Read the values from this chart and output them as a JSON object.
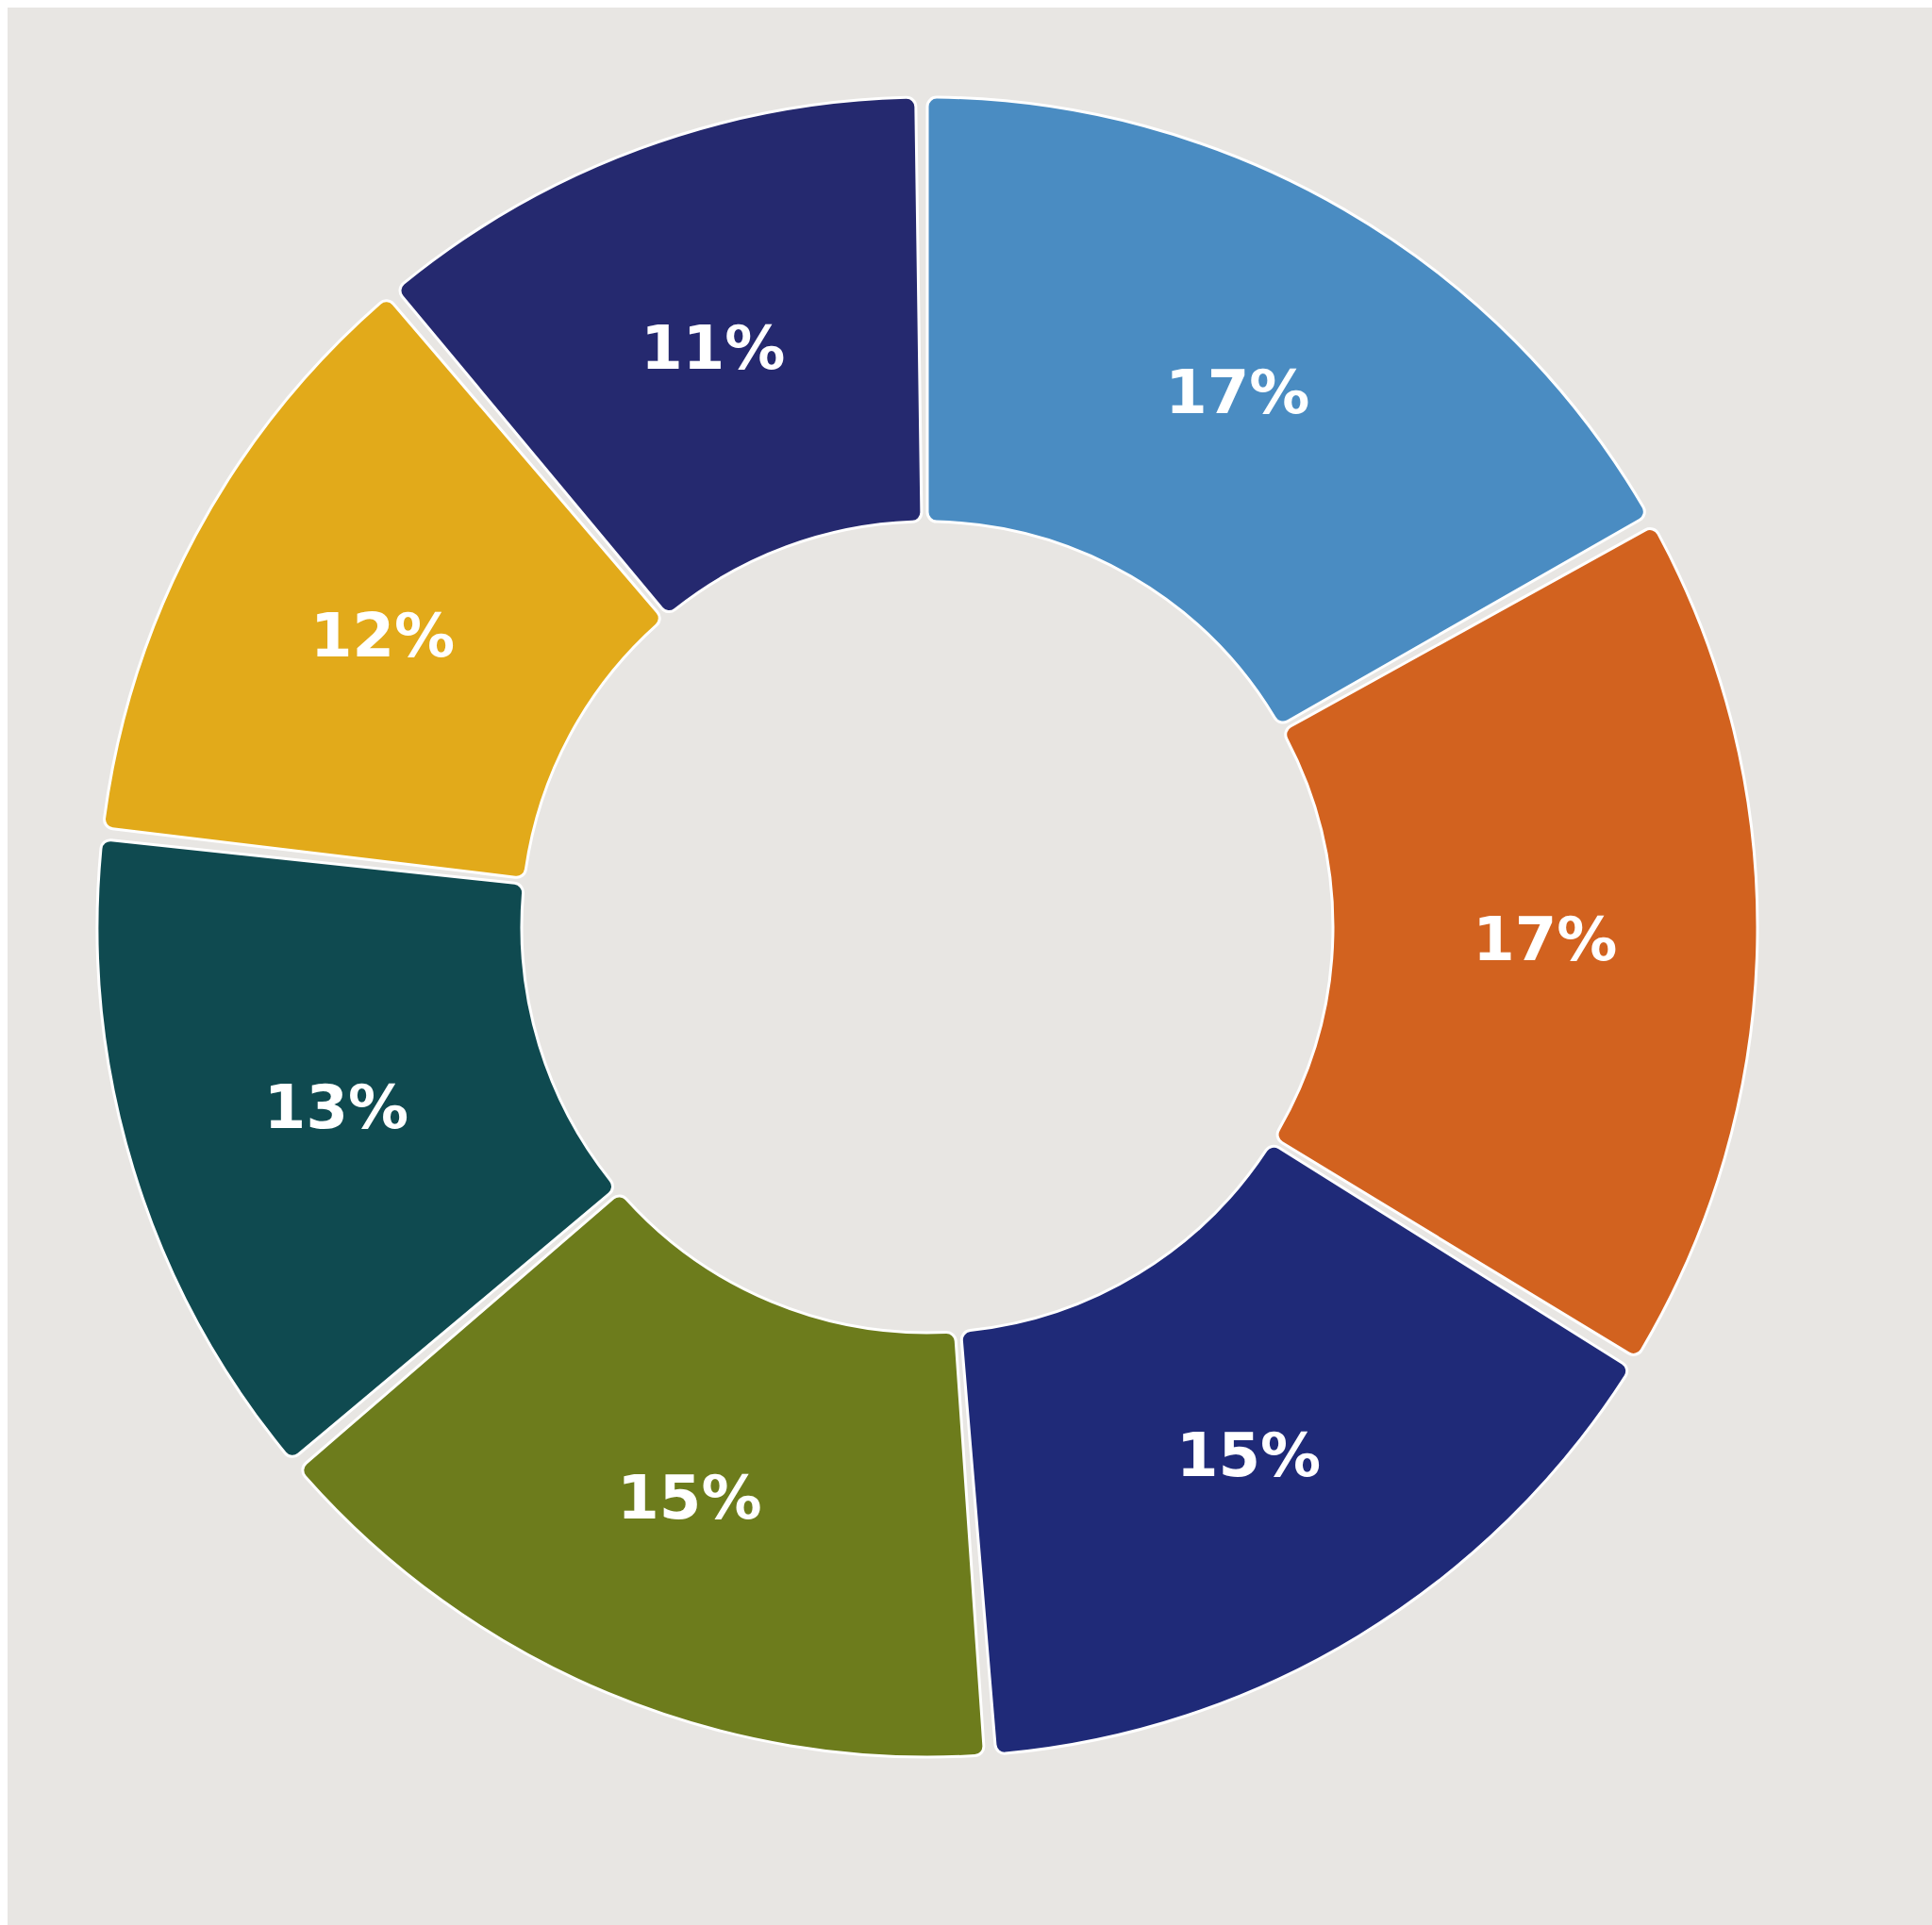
{
  "chart_data": {
    "type": "donut",
    "categories": [
      null,
      null,
      null,
      null,
      null,
      null,
      null
    ],
    "values": [
      17,
      17,
      15,
      15,
      13,
      12,
      11
    ],
    "colors": [
      "#4a8cc2",
      "#d2621f",
      "#1f2a78",
      "#6d7c1c",
      "#0f4a50",
      "#e2aa1a",
      "#25296f"
    ],
    "value_labels": [
      "17%",
      "17%",
      "15%",
      "15%",
      "13%",
      "12%",
      "11%"
    ]
  }
}
